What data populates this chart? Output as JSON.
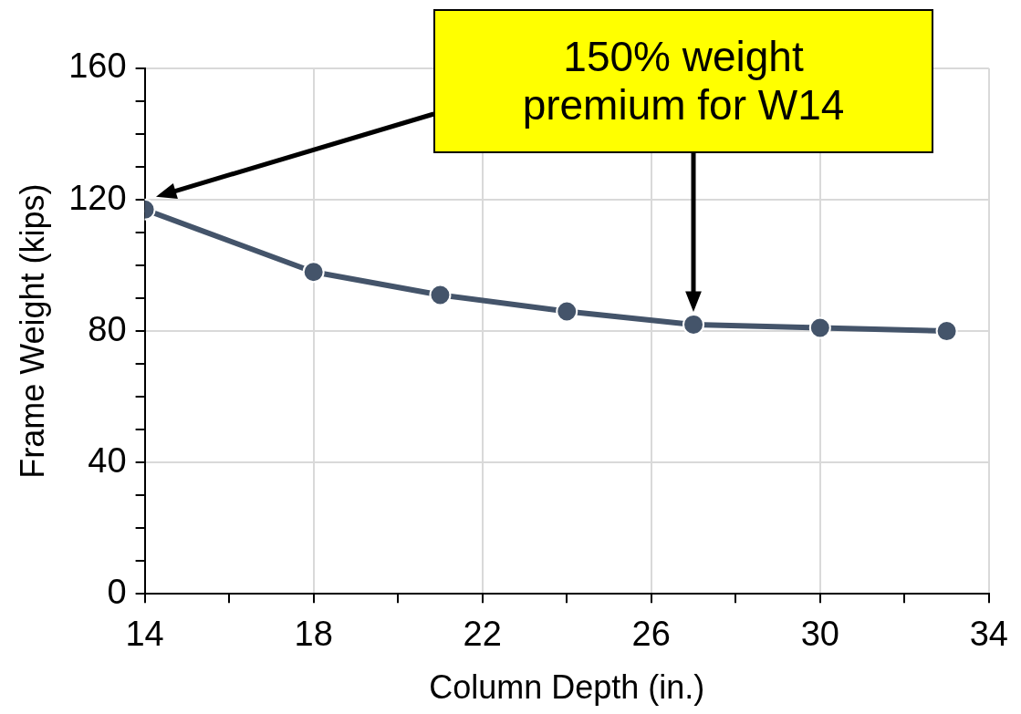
{
  "chart_data": {
    "type": "line",
    "xlabel": "Column Depth (in.)",
    "ylabel": "Frame Weight (kips)",
    "x": [
      14,
      18,
      21,
      24,
      27,
      30,
      33
    ],
    "series": [
      {
        "color": "#44546a",
        "values": [
          117,
          98,
          91,
          86,
          82,
          81,
          80
        ]
      }
    ],
    "xlim": [
      14,
      34
    ],
    "xticks": [
      14,
      {
        "value": 16,
        "label": null
      },
      18,
      {
        "value": 20,
        "label": null
      },
      22,
      {
        "value": 24,
        "label": null
      },
      26,
      {
        "value": 28,
        "label": null
      },
      30,
      {
        "value": 32,
        "label": null
      },
      34
    ],
    "ylim": [
      0,
      160
    ],
    "yticks": [
      0,
      {
        "value": 10,
        "label": null
      },
      {
        "value": 20,
        "label": null
      },
      {
        "value": 30,
        "label": null
      },
      40,
      {
        "value": 50,
        "label": null
      },
      {
        "value": 60,
        "label": null
      },
      {
        "value": 70,
        "label": null
      },
      80,
      {
        "value": 90,
        "label": null
      },
      {
        "value": 100,
        "label": null
      },
      {
        "value": 110,
        "label": null
      },
      120,
      {
        "value": 130,
        "label": null
      },
      {
        "value": 140,
        "label": null
      },
      {
        "value": 150,
        "label": null
      },
      160
    ],
    "grid": true,
    "marker": "circle",
    "line_style": "solid",
    "legend": false,
    "annotations": [
      "150% weight premium for W14"
    ]
  }
}
